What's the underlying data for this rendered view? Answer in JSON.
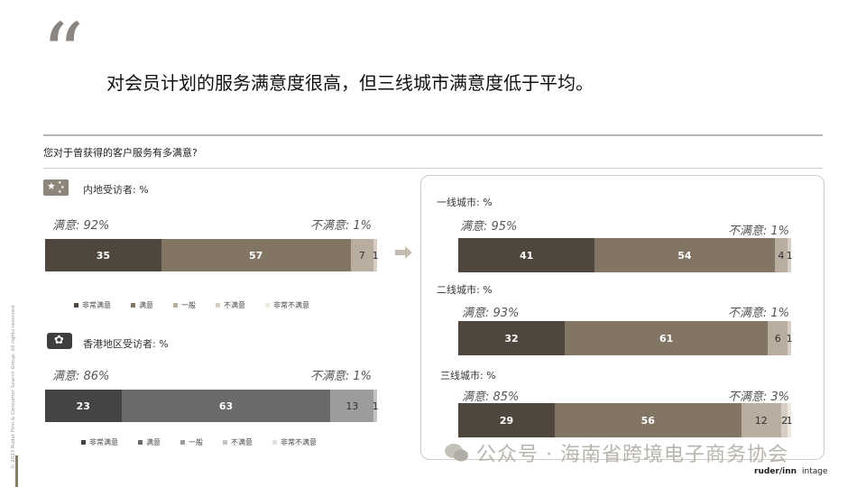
{
  "headline": "对会员计划的服务满意度很高，但三线城市满意度低于平均。",
  "question": "您对于曾获得的客户服务有多满意?",
  "copyright": "© 2023 Ruder Finn & Consumer Search Group. All rights reserved.",
  "watermark": "公众号 · 海南省跨境电子商务协会",
  "logos": {
    "ruder": "ruder/inn",
    "intage": "intage"
  },
  "chart_data": [
    {
      "type": "bar",
      "orientation": "horizontal-stacked",
      "group": "内地受访者: %",
      "sat_label": "满意:  92%",
      "unsat_label": "不满意:  1%",
      "series": [
        {
          "name": "非常满意",
          "value": 35
        },
        {
          "name": "满意",
          "value": 57
        },
        {
          "name": "一般",
          "value": 7
        },
        {
          "name": "不满意",
          "value": 1
        },
        {
          "name": "非常不满意",
          "value": 0
        }
      ],
      "colors": [
        "#4f463e",
        "#837564",
        "#b8ad9f",
        "#d6cec4",
        "#efe9df"
      ]
    },
    {
      "type": "bar",
      "orientation": "horizontal-stacked",
      "group": "香港地区受访者: %",
      "sat_label": "满意:  86%",
      "unsat_label": "不满意:  1%",
      "series": [
        {
          "name": "非常满意",
          "value": 23
        },
        {
          "name": "满意",
          "value": 63
        },
        {
          "name": "一般",
          "value": 13
        },
        {
          "name": "不满意",
          "value": 1
        },
        {
          "name": "非常不满意",
          "value": 0
        }
      ],
      "colors": [
        "#444444",
        "#6a6a6a",
        "#9c9c9c",
        "#c4c4c4",
        "#e2e2e2"
      ]
    },
    {
      "type": "bar",
      "orientation": "horizontal-stacked",
      "group": "一线城市: %",
      "sat_label": "满意:  95%",
      "unsat_label": "不满意:  1%",
      "series": [
        {
          "name": "非常满意",
          "value": 41
        },
        {
          "name": "满意",
          "value": 54
        },
        {
          "name": "一般",
          "value": 4
        },
        {
          "name": "不满意",
          "value": 1
        },
        {
          "name": "非常不满意",
          "value": 0
        }
      ],
      "colors": [
        "#4f463e",
        "#837564",
        "#b8ad9f",
        "#d6cec4",
        "#efe9df"
      ]
    },
    {
      "type": "bar",
      "orientation": "horizontal-stacked",
      "group": "二线城市: %",
      "sat_label": "满意:  93%",
      "unsat_label": "不满意:  1%",
      "series": [
        {
          "name": "非常满意",
          "value": 32
        },
        {
          "name": "满意",
          "value": 61
        },
        {
          "name": "一般",
          "value": 6
        },
        {
          "name": "不满意",
          "value": 1
        },
        {
          "name": "非常不满意",
          "value": 0
        }
      ],
      "colors": [
        "#4f463e",
        "#837564",
        "#b8ad9f",
        "#d6cec4",
        "#efe9df"
      ]
    },
    {
      "type": "bar",
      "orientation": "horizontal-stacked",
      "group": "三线城市: %",
      "sat_label": "满意:  85%",
      "unsat_label": "不满意:  3%",
      "series": [
        {
          "name": "非常满意",
          "value": 29
        },
        {
          "name": "满意",
          "value": 56
        },
        {
          "name": "一般",
          "value": 12
        },
        {
          "name": "不满意",
          "value": 2
        },
        {
          "name": "非常不满意",
          "value": 1
        }
      ],
      "colors": [
        "#4f463e",
        "#837564",
        "#b8ad9f",
        "#d6cec4",
        "#efe9df"
      ]
    }
  ],
  "legend_labels": [
    "非常满意",
    "满意",
    "一般",
    "不满意",
    "非常不满意"
  ]
}
